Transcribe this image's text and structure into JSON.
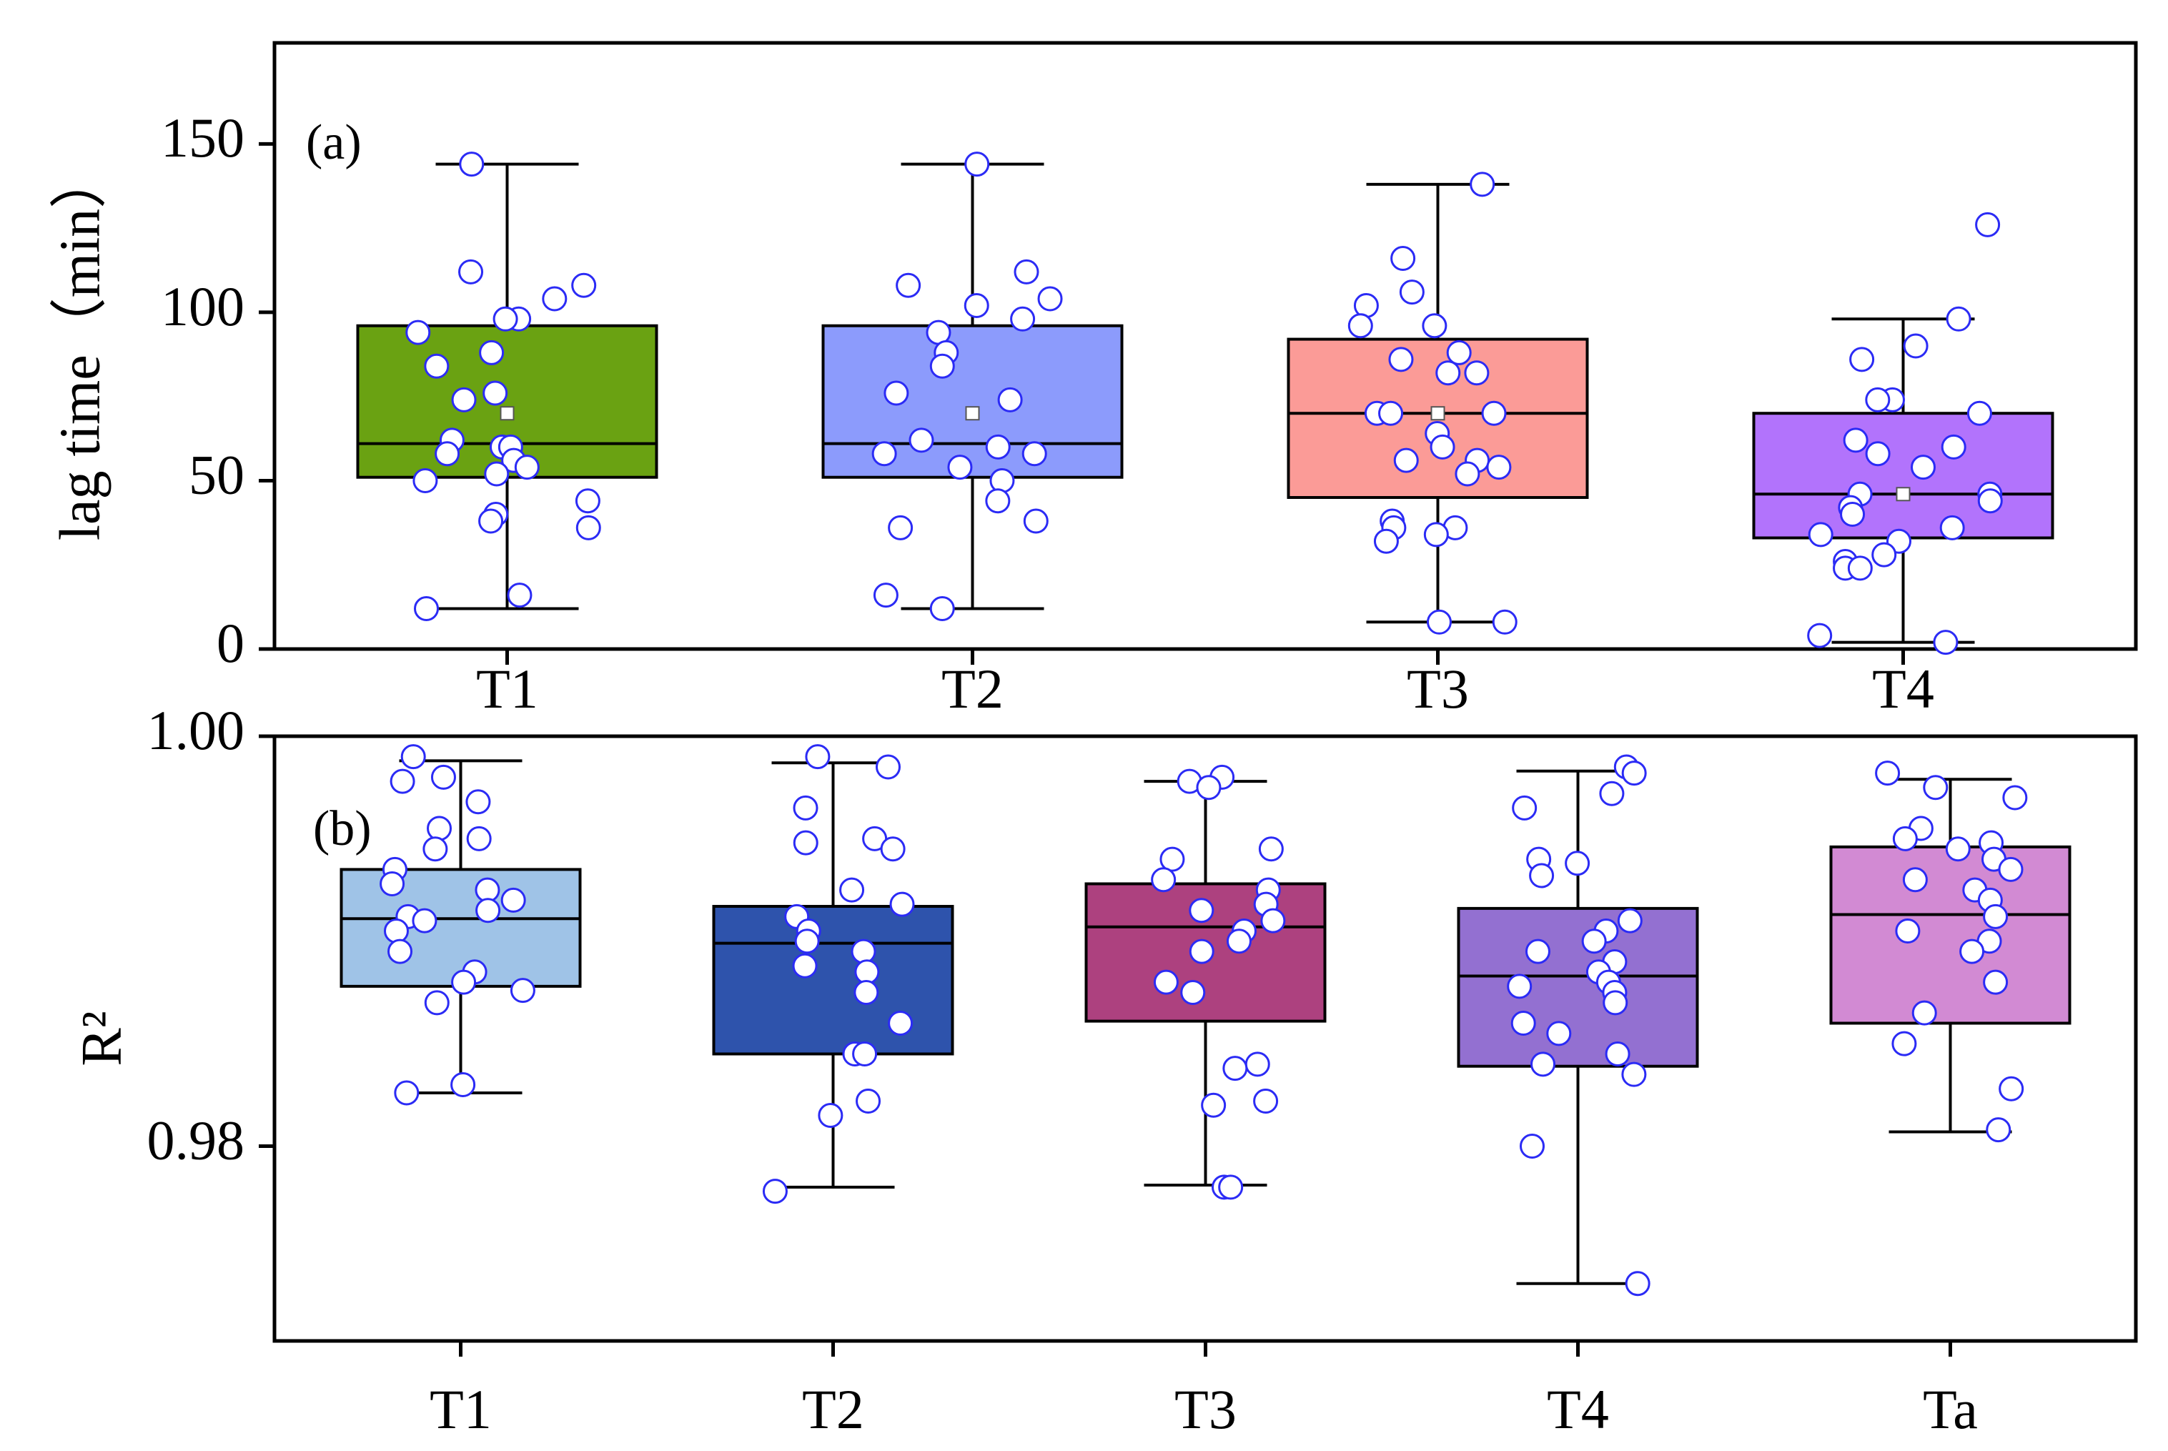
{
  "chart_data": [
    {
      "type": "box",
      "panel_label": "(a)",
      "ylabel": "lag time（min）",
      "ylim": [
        0,
        180
      ],
      "yticks": [
        0,
        50,
        100,
        150
      ],
      "categories": [
        "T1",
        "T2",
        "T3",
        "T4"
      ],
      "boxes": [
        {
          "name": "T1",
          "color": "#6aa212",
          "min": 12,
          "q1": 51,
          "median": 61,
          "q3": 96,
          "max": 144,
          "mean": 70,
          "points": [
            144,
            112,
            108,
            104,
            98,
            98,
            94,
            88,
            84,
            76,
            74,
            62,
            60,
            60,
            58,
            56,
            54,
            52,
            50,
            44,
            40,
            38,
            36,
            16,
            12
          ]
        },
        {
          "name": "T2",
          "color": "#8c9bfc",
          "min": 12,
          "q1": 51,
          "median": 61,
          "q3": 96,
          "max": 144,
          "mean": 70,
          "points": [
            144,
            112,
            108,
            104,
            102,
            98,
            94,
            88,
            84,
            76,
            74,
            62,
            60,
            58,
            58,
            54,
            50,
            44,
            38,
            36,
            16,
            12
          ]
        },
        {
          "name": "T3",
          "color": "#fb9b97",
          "min": 8,
          "q1": 45,
          "median": 70,
          "q3": 92,
          "max": 138,
          "mean": 70,
          "points": [
            138,
            116,
            106,
            102,
            96,
            96,
            88,
            86,
            82,
            82,
            70,
            70,
            70,
            64,
            60,
            56,
            56,
            54,
            52,
            38,
            36,
            36,
            34,
            32,
            8,
            8
          ]
        },
        {
          "name": "T4",
          "color": "#b273fc",
          "min": 2,
          "q1": 33,
          "median": 46,
          "q3": 70,
          "max": 98,
          "mean": 46,
          "points": [
            126,
            98,
            90,
            86,
            74,
            74,
            70,
            62,
            60,
            58,
            54,
            46,
            46,
            44,
            42,
            40,
            36,
            34,
            32,
            28,
            26,
            24,
            24,
            4,
            2
          ]
        }
      ]
    },
    {
      "type": "box",
      "panel_label": "(b)",
      "ylabel": "R²",
      "ylim": [
        0.9705,
        1.0
      ],
      "yticks": [
        0.98,
        1.0
      ],
      "ytick_labels": [
        "0.98",
        "1.00"
      ],
      "categories": [
        "T1",
        "T2",
        "T3",
        "T4",
        "Ta"
      ],
      "boxes": [
        {
          "name": "T1",
          "color": "#9fc3e7",
          "min": 0.9826,
          "q1": 0.9878,
          "median": 0.9911,
          "q3": 0.9935,
          "max": 0.9988,
          "points": [
            0.999,
            0.998,
            0.9978,
            0.9968,
            0.9955,
            0.995,
            0.9945,
            0.9935,
            0.9928,
            0.9925,
            0.992,
            0.9915,
            0.9912,
            0.991,
            0.9905,
            0.9895,
            0.9885,
            0.988,
            0.9876,
            0.987,
            0.983,
            0.9826
          ]
        },
        {
          "name": "T2",
          "color": "#2e53ac",
          "min": 0.978,
          "q1": 0.9845,
          "median": 0.9899,
          "q3": 0.9917,
          "max": 0.9987,
          "points": [
            0.999,
            0.9985,
            0.9965,
            0.995,
            0.9948,
            0.9945,
            0.9925,
            0.9918,
            0.9912,
            0.9905,
            0.99,
            0.9895,
            0.9888,
            0.9885,
            0.9875,
            0.986,
            0.9845,
            0.9845,
            0.9822,
            0.9815,
            0.9778
          ]
        },
        {
          "name": "T3",
          "color": "#ad417f",
          "min": 0.9781,
          "q1": 0.9861,
          "median": 0.9907,
          "q3": 0.9928,
          "max": 0.9978,
          "points": [
            0.998,
            0.9978,
            0.9975,
            0.9945,
            0.994,
            0.993,
            0.9925,
            0.9918,
            0.9915,
            0.991,
            0.9905,
            0.99,
            0.9895,
            0.988,
            0.9875,
            0.984,
            0.9838,
            0.9822,
            0.982,
            0.978,
            0.978
          ]
        },
        {
          "name": "T4",
          "color": "#9370d1",
          "min": 0.9733,
          "q1": 0.9839,
          "median": 0.9883,
          "q3": 0.9916,
          "max": 0.9983,
          "points": [
            0.9985,
            0.9982,
            0.9972,
            0.9965,
            0.994,
            0.9938,
            0.9932,
            0.991,
            0.9905,
            0.99,
            0.9895,
            0.989,
            0.9885,
            0.988,
            0.9878,
            0.9875,
            0.987,
            0.986,
            0.9855,
            0.9845,
            0.984,
            0.9835,
            0.98,
            0.9733
          ]
        },
        {
          "name": "Ta",
          "color": "#d28ad3",
          "min": 0.9807,
          "q1": 0.986,
          "median": 0.9913,
          "q3": 0.9946,
          "max": 0.9979,
          "points": [
            0.9982,
            0.9975,
            0.997,
            0.9955,
            0.995,
            0.9948,
            0.9945,
            0.994,
            0.9935,
            0.993,
            0.9925,
            0.992,
            0.9912,
            0.9905,
            0.99,
            0.9895,
            0.988,
            0.9865,
            0.985,
            0.9828,
            0.9808
          ]
        }
      ]
    }
  ]
}
